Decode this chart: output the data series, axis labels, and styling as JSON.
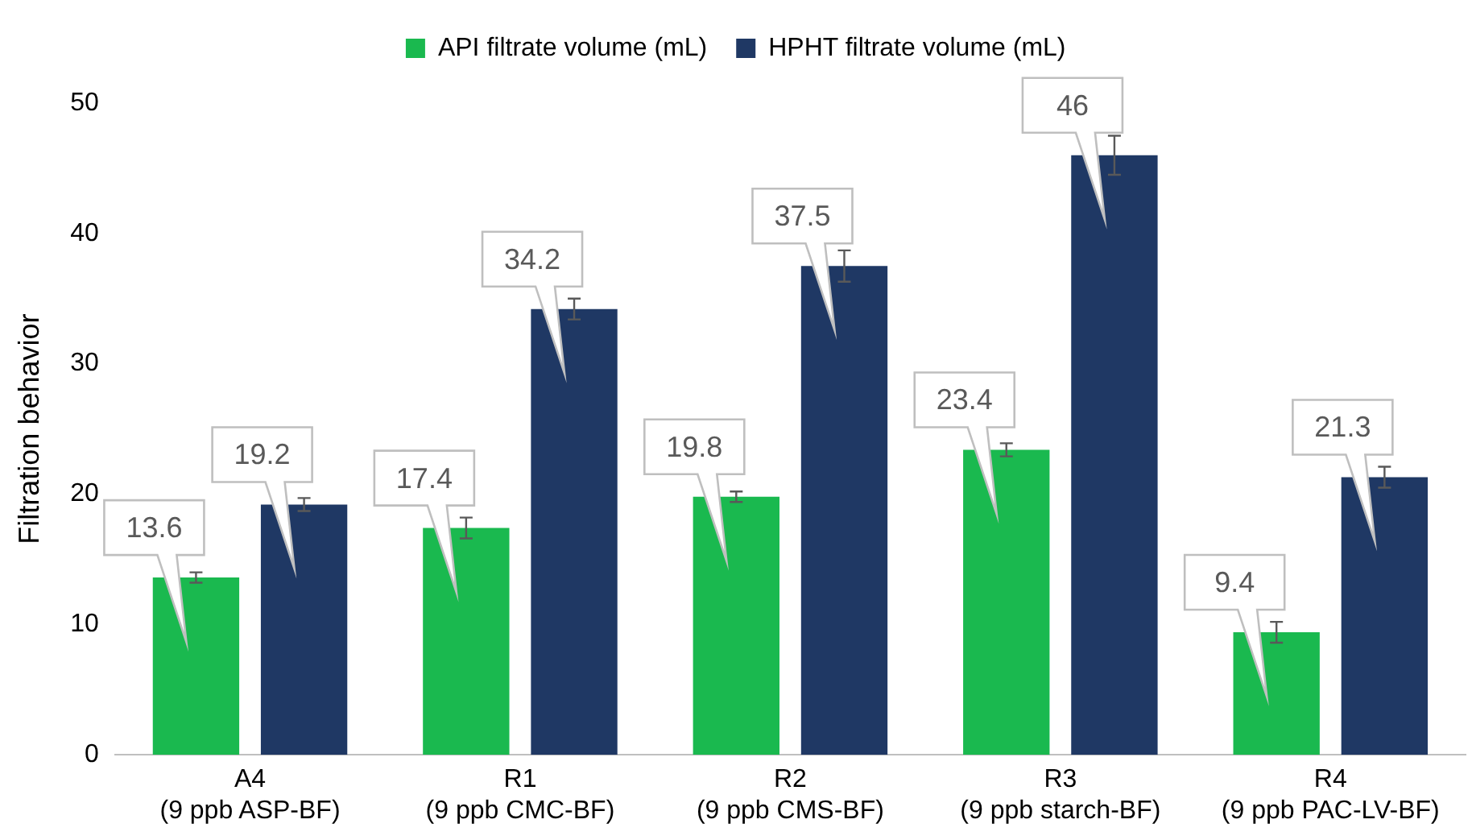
{
  "chart_data": {
    "type": "bar",
    "ylabel": "Filtration behavior",
    "categories": [
      "A4\n(9 ppb ASP-BF)",
      "R1\n(9 ppb CMC-BF)",
      "R2\n(9 ppb CMS-BF)",
      "R3\n(9 ppb starch-BF)",
      "R4\n(9 ppb PAC-LV-BF)"
    ],
    "series": [
      {
        "name": "API filtrate volume (mL)",
        "color": "#1ab94f",
        "values": [
          13.6,
          17.4,
          19.8,
          23.4,
          9.4
        ],
        "errors": [
          0.4,
          0.8,
          0.4,
          0.5,
          0.8
        ]
      },
      {
        "name": "HPHT filtrate volume (mL)",
        "color": "#1f3864",
        "values": [
          19.2,
          34.2,
          37.5,
          46,
          21.3
        ],
        "errors": [
          0.5,
          0.8,
          1.2,
          1.5,
          0.8
        ]
      }
    ],
    "ylim": [
      0,
      50
    ],
    "yticks": [
      0,
      10,
      20,
      30,
      40,
      50
    ],
    "grid": false,
    "legend": "top",
    "data_labels": true
  }
}
